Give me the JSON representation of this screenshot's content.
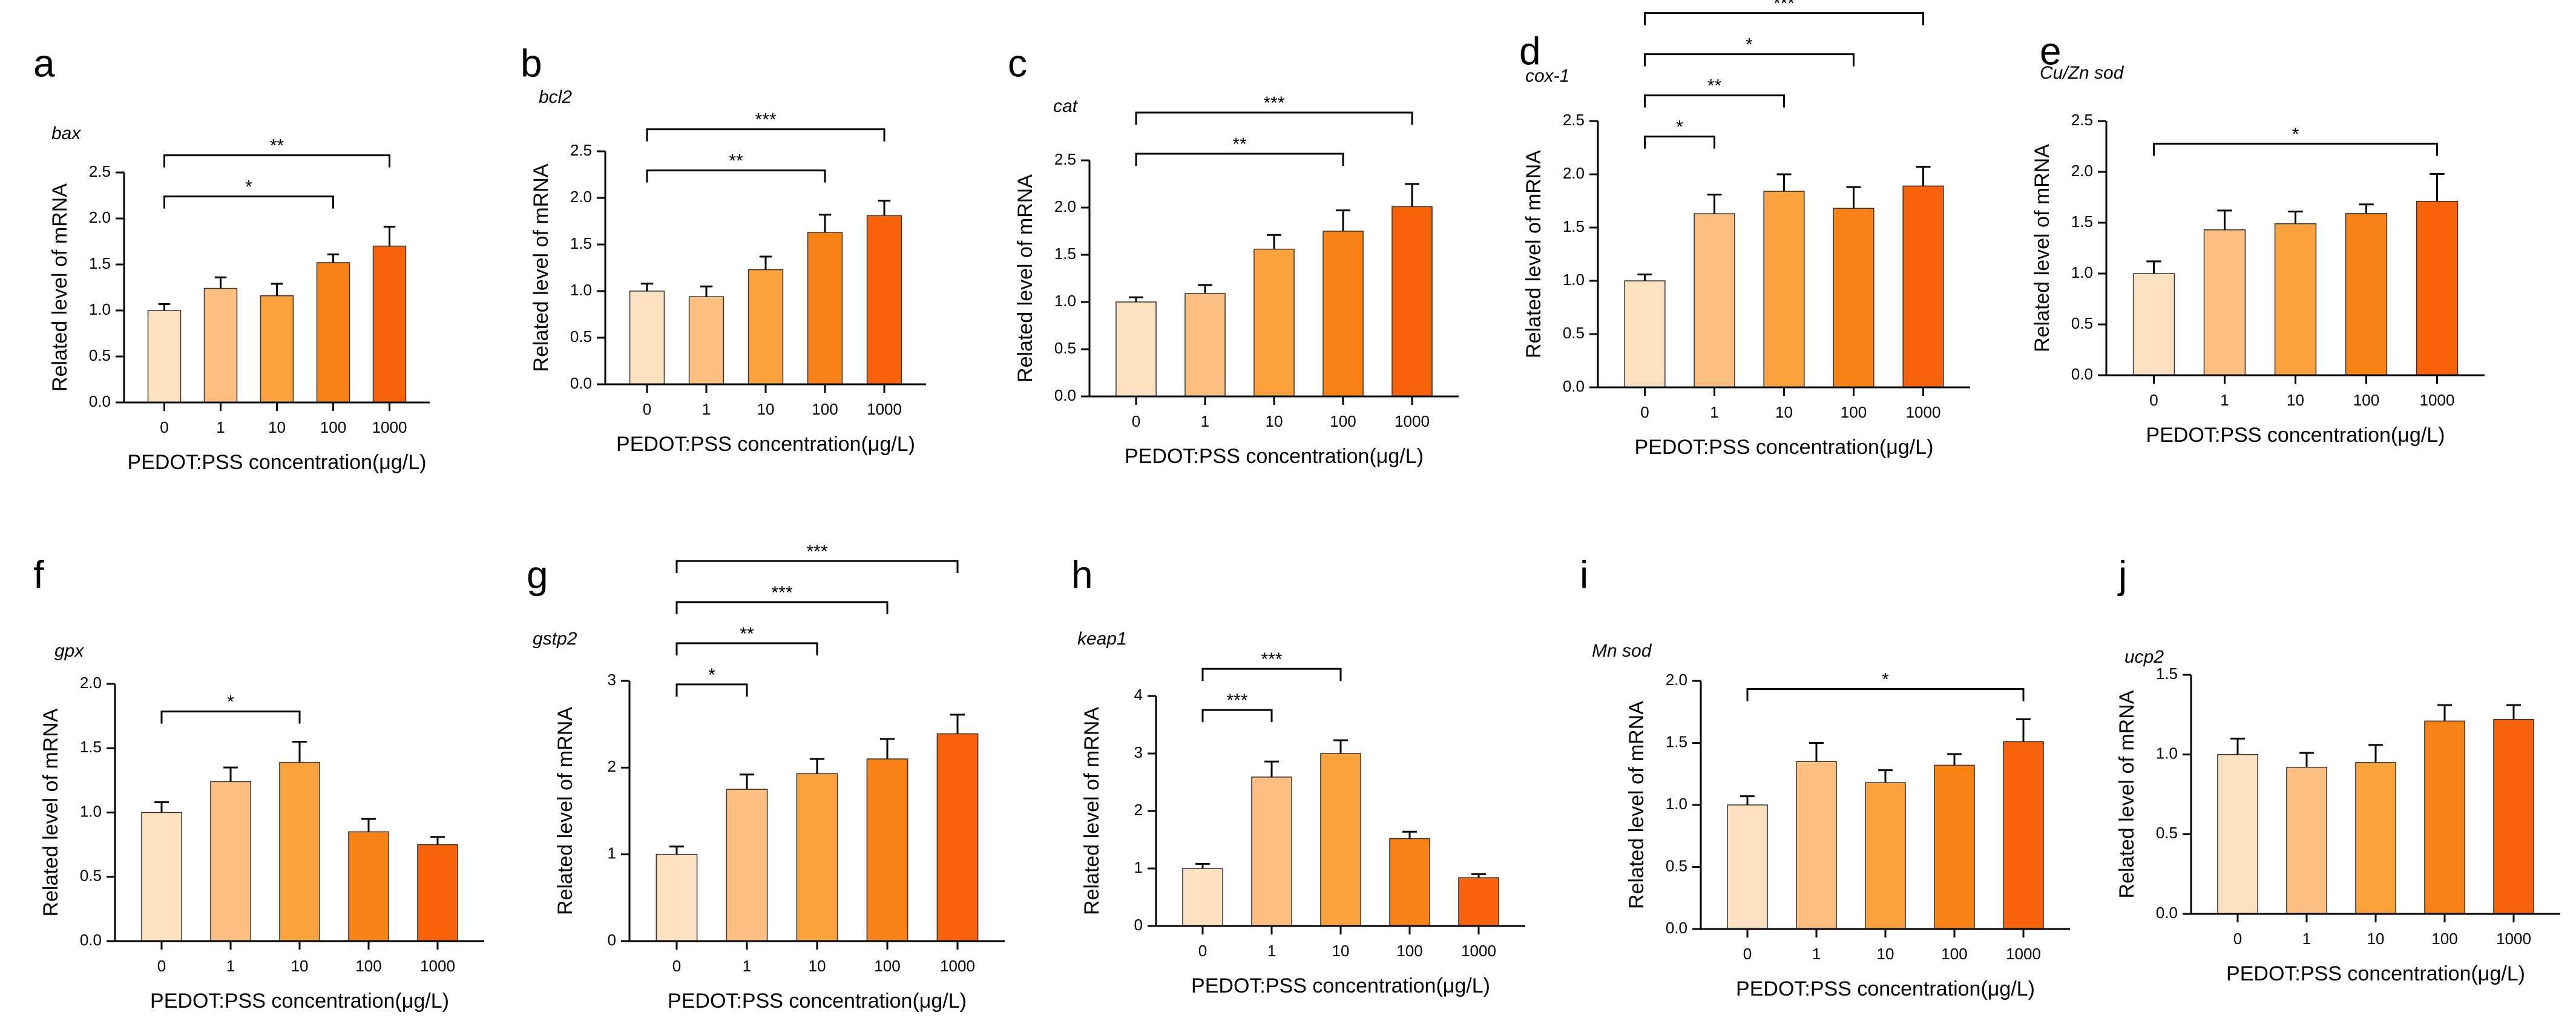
{
  "colors": [
    "#FDE0C0",
    "#FDBF80",
    "#FBA23E",
    "#F98217",
    "#F8620A"
  ],
  "chart_data": [
    {
      "type": "bar",
      "letter": "a",
      "gene": "bax",
      "xlabel": "PEDOT:PSS concentration(μg/L)",
      "ylabel": "Related level of mRNA",
      "categories": [
        "0",
        "1",
        "10",
        "100",
        "1000"
      ],
      "values": [
        1.0,
        1.24,
        1.16,
        1.52,
        1.7
      ],
      "errors": [
        0.07,
        0.12,
        0.13,
        0.09,
        0.21
      ],
      "ylim": [
        0,
        2.5
      ],
      "yticks": [
        "0.0",
        "0.5",
        "1.0",
        "1.5",
        "2.0",
        "2.5"
      ],
      "sig": [
        {
          "from": 0,
          "to": 3,
          "label": "*"
        },
        {
          "from": 0,
          "to": 4,
          "label": "**"
        }
      ]
    },
    {
      "type": "bar",
      "letter": "b",
      "gene": "bcl2",
      "xlabel": "PEDOT:PSS concentration(μg/L)",
      "ylabel": "Related level of mRNA",
      "categories": [
        "0",
        "1",
        "10",
        "100",
        "1000"
      ],
      "values": [
        1.0,
        0.94,
        1.23,
        1.63,
        1.81
      ],
      "errors": [
        0.08,
        0.11,
        0.14,
        0.19,
        0.16
      ],
      "ylim": [
        0,
        2.5
      ],
      "yticks": [
        "0.0",
        "0.5",
        "1.0",
        "1.5",
        "2.0",
        "2.5"
      ],
      "sig": [
        {
          "from": 0,
          "to": 3,
          "label": "**"
        },
        {
          "from": 0,
          "to": 4,
          "label": "***"
        }
      ]
    },
    {
      "type": "bar",
      "letter": "c",
      "gene": "cat",
      "xlabel": "PEDOT:PSS concentration(μg/L)",
      "ylabel": "Related level of mRNA",
      "categories": [
        "0",
        "1",
        "10",
        "100",
        "1000"
      ],
      "values": [
        1.0,
        1.09,
        1.56,
        1.75,
        2.01
      ],
      "errors": [
        0.05,
        0.09,
        0.15,
        0.22,
        0.24
      ],
      "ylim": [
        0,
        2.5
      ],
      "yticks": [
        "0.0",
        "0.5",
        "1.0",
        "1.5",
        "2.0",
        "2.5"
      ],
      "sig": [
        {
          "from": 0,
          "to": 3,
          "label": "**"
        },
        {
          "from": 0,
          "to": 4,
          "label": "***"
        }
      ]
    },
    {
      "type": "bar",
      "letter": "d",
      "gene": "cox-1",
      "xlabel": "PEDOT:PSS concentration(μg/L)",
      "ylabel": "Related level of mRNA",
      "categories": [
        "0",
        "1",
        "10",
        "100",
        "1000"
      ],
      "values": [
        1.0,
        1.63,
        1.84,
        1.68,
        1.89
      ],
      "errors": [
        0.06,
        0.18,
        0.16,
        0.2,
        0.18
      ],
      "ylim": [
        0,
        2.5
      ],
      "yticks": [
        "0.0",
        "0.5",
        "1.0",
        "1.5",
        "2.0",
        "2.5"
      ],
      "sig": [
        {
          "from": 0,
          "to": 1,
          "label": "*"
        },
        {
          "from": 0,
          "to": 2,
          "label": "**"
        },
        {
          "from": 0,
          "to": 3,
          "label": "*"
        },
        {
          "from": 0,
          "to": 4,
          "label": "***"
        }
      ]
    },
    {
      "type": "bar",
      "letter": "e",
      "gene": "Cu/Zn sod",
      "xlabel": "PEDOT:PSS concentration(μg/L)",
      "ylabel": "Related level of mRNA",
      "categories": [
        "0",
        "1",
        "10",
        "100",
        "1000"
      ],
      "values": [
        1.0,
        1.43,
        1.49,
        1.59,
        1.71
      ],
      "errors": [
        0.12,
        0.19,
        0.12,
        0.09,
        0.27
      ],
      "ylim": [
        0,
        2.5
      ],
      "yticks": [
        "0.0",
        "0.5",
        "1.0",
        "1.5",
        "2.0",
        "2.5"
      ],
      "sig": [
        {
          "from": 0,
          "to": 4,
          "label": "*"
        }
      ]
    },
    {
      "type": "bar",
      "letter": "f",
      "gene": "gpx",
      "xlabel": "PEDOT:PSS concentration(μg/L)",
      "ylabel": "Related level of mRNA",
      "categories": [
        "0",
        "1",
        "10",
        "100",
        "1000"
      ],
      "values": [
        1.0,
        1.24,
        1.39,
        0.85,
        0.75
      ],
      "errors": [
        0.08,
        0.11,
        0.16,
        0.1,
        0.06
      ],
      "ylim": [
        0,
        2.0
      ],
      "yticks": [
        "0.0",
        "0.5",
        "1.0",
        "1.5",
        "2.0"
      ],
      "sig": [
        {
          "from": 0,
          "to": 2,
          "label": "*"
        }
      ]
    },
    {
      "type": "bar",
      "letter": "g",
      "gene": "gstp2",
      "xlabel": "PEDOT:PSS concentration(μg/L)",
      "ylabel": "Related level of mRNA",
      "categories": [
        "0",
        "1",
        "10",
        "100",
        "1000"
      ],
      "values": [
        1.0,
        1.75,
        1.93,
        2.1,
        2.39
      ],
      "errors": [
        0.09,
        0.17,
        0.17,
        0.23,
        0.22
      ],
      "ylim": [
        0,
        3
      ],
      "yticks": [
        "0",
        "1",
        "2",
        "3"
      ],
      "sig": [
        {
          "from": 0,
          "to": 1,
          "label": "*"
        },
        {
          "from": 0,
          "to": 2,
          "label": "**"
        },
        {
          "from": 0,
          "to": 3,
          "label": "***"
        },
        {
          "from": 0,
          "to": 4,
          "label": "***"
        }
      ]
    },
    {
      "type": "bar",
      "letter": "h",
      "gene": "keap1",
      "xlabel": "PEDOT:PSS concentration(μg/L)",
      "ylabel": "Related level of mRNA",
      "categories": [
        "0",
        "1",
        "10",
        "100",
        "1000"
      ],
      "values": [
        1.0,
        2.59,
        3.0,
        1.52,
        0.84
      ],
      "errors": [
        0.08,
        0.27,
        0.23,
        0.12,
        0.06
      ],
      "ylim": [
        0,
        4
      ],
      "yticks": [
        "0",
        "1",
        "2",
        "3",
        "4"
      ],
      "sig": [
        {
          "from": 0,
          "to": 1,
          "label": "***"
        },
        {
          "from": 0,
          "to": 2,
          "label": "***"
        }
      ]
    },
    {
      "type": "bar",
      "letter": "i",
      "gene": "Mn sod",
      "xlabel": "PEDOT:PSS concentration(μg/L)",
      "ylabel": "Related level of mRNA",
      "categories": [
        "0",
        "1",
        "10",
        "100",
        "1000"
      ],
      "values": [
        1.0,
        1.35,
        1.18,
        1.32,
        1.51
      ],
      "errors": [
        0.07,
        0.15,
        0.1,
        0.09,
        0.18
      ],
      "ylim": [
        0,
        2.0
      ],
      "yticks": [
        "0.0",
        "0.5",
        "1.0",
        "1.5",
        "2.0"
      ],
      "sig": [
        {
          "from": 0,
          "to": 4,
          "label": "*"
        }
      ]
    },
    {
      "type": "bar",
      "letter": "j",
      "gene": "ucp2",
      "xlabel": "PEDOT:PSS concentration(μg/L)",
      "ylabel": "Related level of mRNA",
      "categories": [
        "0",
        "1",
        "10",
        "100",
        "1000"
      ],
      "values": [
        1.0,
        0.92,
        0.95,
        1.21,
        1.22
      ],
      "errors": [
        0.1,
        0.09,
        0.11,
        0.1,
        0.09
      ],
      "ylim": [
        0,
        1.5
      ],
      "yticks": [
        "0.0",
        "0.5",
        "1.0",
        "1.5"
      ],
      "sig": []
    }
  ]
}
